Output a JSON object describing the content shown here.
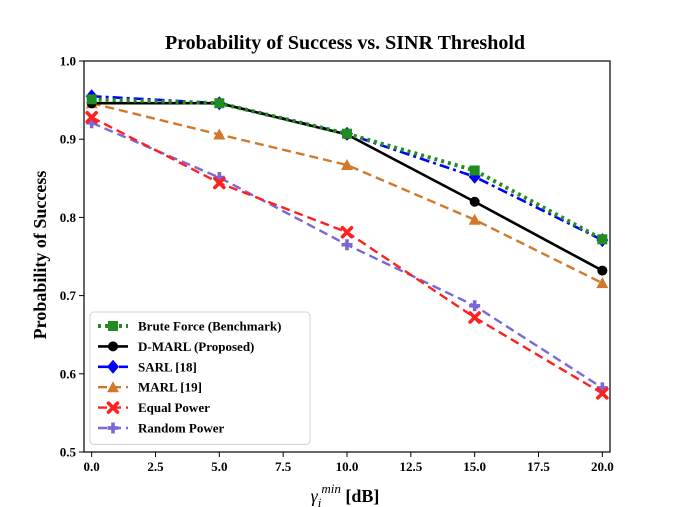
{
  "chart_data": {
    "type": "line",
    "title": "Probability of Success vs. SINR Threshold",
    "xlabel_var": "γ",
    "xlabel_sub": "i",
    "xlabel_sup": "min",
    "xlabel_unit": " [dB]",
    "ylabel": "Probability of Success",
    "xlim": [
      -0.3,
      20.3
    ],
    "ylim": [
      0.5,
      1.0
    ],
    "xticks": [
      0.0,
      2.5,
      5.0,
      7.5,
      10.0,
      12.5,
      15.0,
      17.5,
      20.0
    ],
    "xtick_labels": [
      "0.0",
      "2.5",
      "5.0",
      "7.5",
      "10.0",
      "12.5",
      "15.0",
      "17.5",
      "20.0"
    ],
    "yticks": [
      0.5,
      0.6,
      0.7,
      0.8,
      0.9,
      1.0
    ],
    "ytick_labels": [
      "0.5",
      "0.6",
      "0.7",
      "0.8",
      "0.9",
      "1.0"
    ],
    "grid": false,
    "legend_position": "lower-left",
    "x": [
      0,
      5,
      10,
      15,
      20
    ],
    "series": [
      {
        "name": "Brute Force (Benchmark)",
        "values": [
          0.951,
          0.946,
          0.907,
          0.86,
          0.772
        ],
        "color": "#228B22",
        "dash": "dotted",
        "marker": "square"
      },
      {
        "name": "D-MARL (Proposed)",
        "values": [
          0.946,
          0.946,
          0.906,
          0.82,
          0.732
        ],
        "color": "#000000",
        "dash": "solid",
        "marker": "circle"
      },
      {
        "name": "SARL [18]",
        "values": [
          0.955,
          0.946,
          0.907,
          0.852,
          0.771
        ],
        "color": "#0000FF",
        "dash": "dashdot",
        "marker": "diamond"
      },
      {
        "name": "MARL [19]",
        "values": [
          0.946,
          0.906,
          0.867,
          0.797,
          0.716
        ],
        "color": "#D2782A",
        "dash": "dashed",
        "marker": "triangle"
      },
      {
        "name": "Equal Power",
        "values": [
          0.928,
          0.844,
          0.781,
          0.672,
          0.575
        ],
        "color": "#FF2020",
        "dash": "dashed",
        "marker": "x"
      },
      {
        "name": "Random Power",
        "values": [
          0.921,
          0.851,
          0.765,
          0.687,
          0.582
        ],
        "color": "#7B68D6",
        "dash": "dashed",
        "marker": "plus"
      }
    ]
  }
}
